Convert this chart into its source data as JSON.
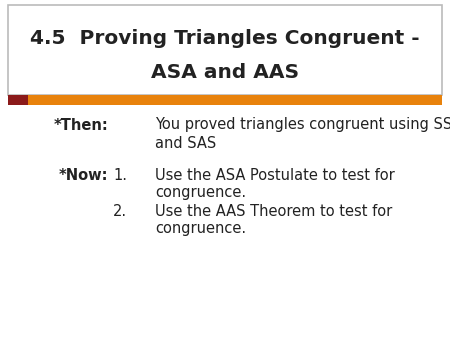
{
  "title_line1": "4.5  Proving Triangles Congruent -",
  "title_line2": "ASA and AAS",
  "title_bg": "#ffffff",
  "title_border_color": "#bbbbbb",
  "title_text_color": "#222222",
  "orange_bar_color": "#E8820C",
  "red_square_color": "#8B1A1A",
  "body_bg": "#ffffff",
  "then_label": "*Then:",
  "then_text1": "You proved triangles congruent using SSS",
  "then_text2": "and SAS",
  "now_label": "*Now:",
  "now_item1_num": "1.",
  "now_item1_text1": "Use the ASA Postulate to test for",
  "now_item1_text2": "congruence.",
  "now_item2_num": "2.",
  "now_item2_text1": "Use the AAS Theorem to test for",
  "now_item2_text2": "congruence.",
  "body_fontsize": 10.5,
  "title_fontsize": 14.5,
  "fig_width": 4.5,
  "fig_height": 3.38,
  "fig_dpi": 100
}
